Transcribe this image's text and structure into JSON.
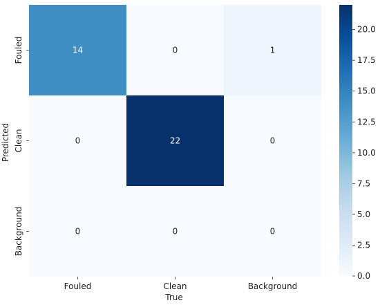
{
  "chart_data": {
    "type": "heatmap",
    "title": "",
    "xlabel": "True",
    "ylabel": "Predicted",
    "x_categories": [
      "Fouled",
      "Clean",
      "Background"
    ],
    "y_categories": [
      "Fouled",
      "Clean",
      "Background"
    ],
    "values": [
      [
        14,
        0,
        1
      ],
      [
        0,
        22,
        0
      ],
      [
        0,
        0,
        0
      ]
    ],
    "colormap": "Blues",
    "colorbar": {
      "min": 0,
      "max": 22,
      "ticks": [
        "0.0",
        "2.5",
        "5.0",
        "7.5",
        "10.0",
        "12.5",
        "15.0",
        "17.5",
        "20.0"
      ]
    }
  }
}
